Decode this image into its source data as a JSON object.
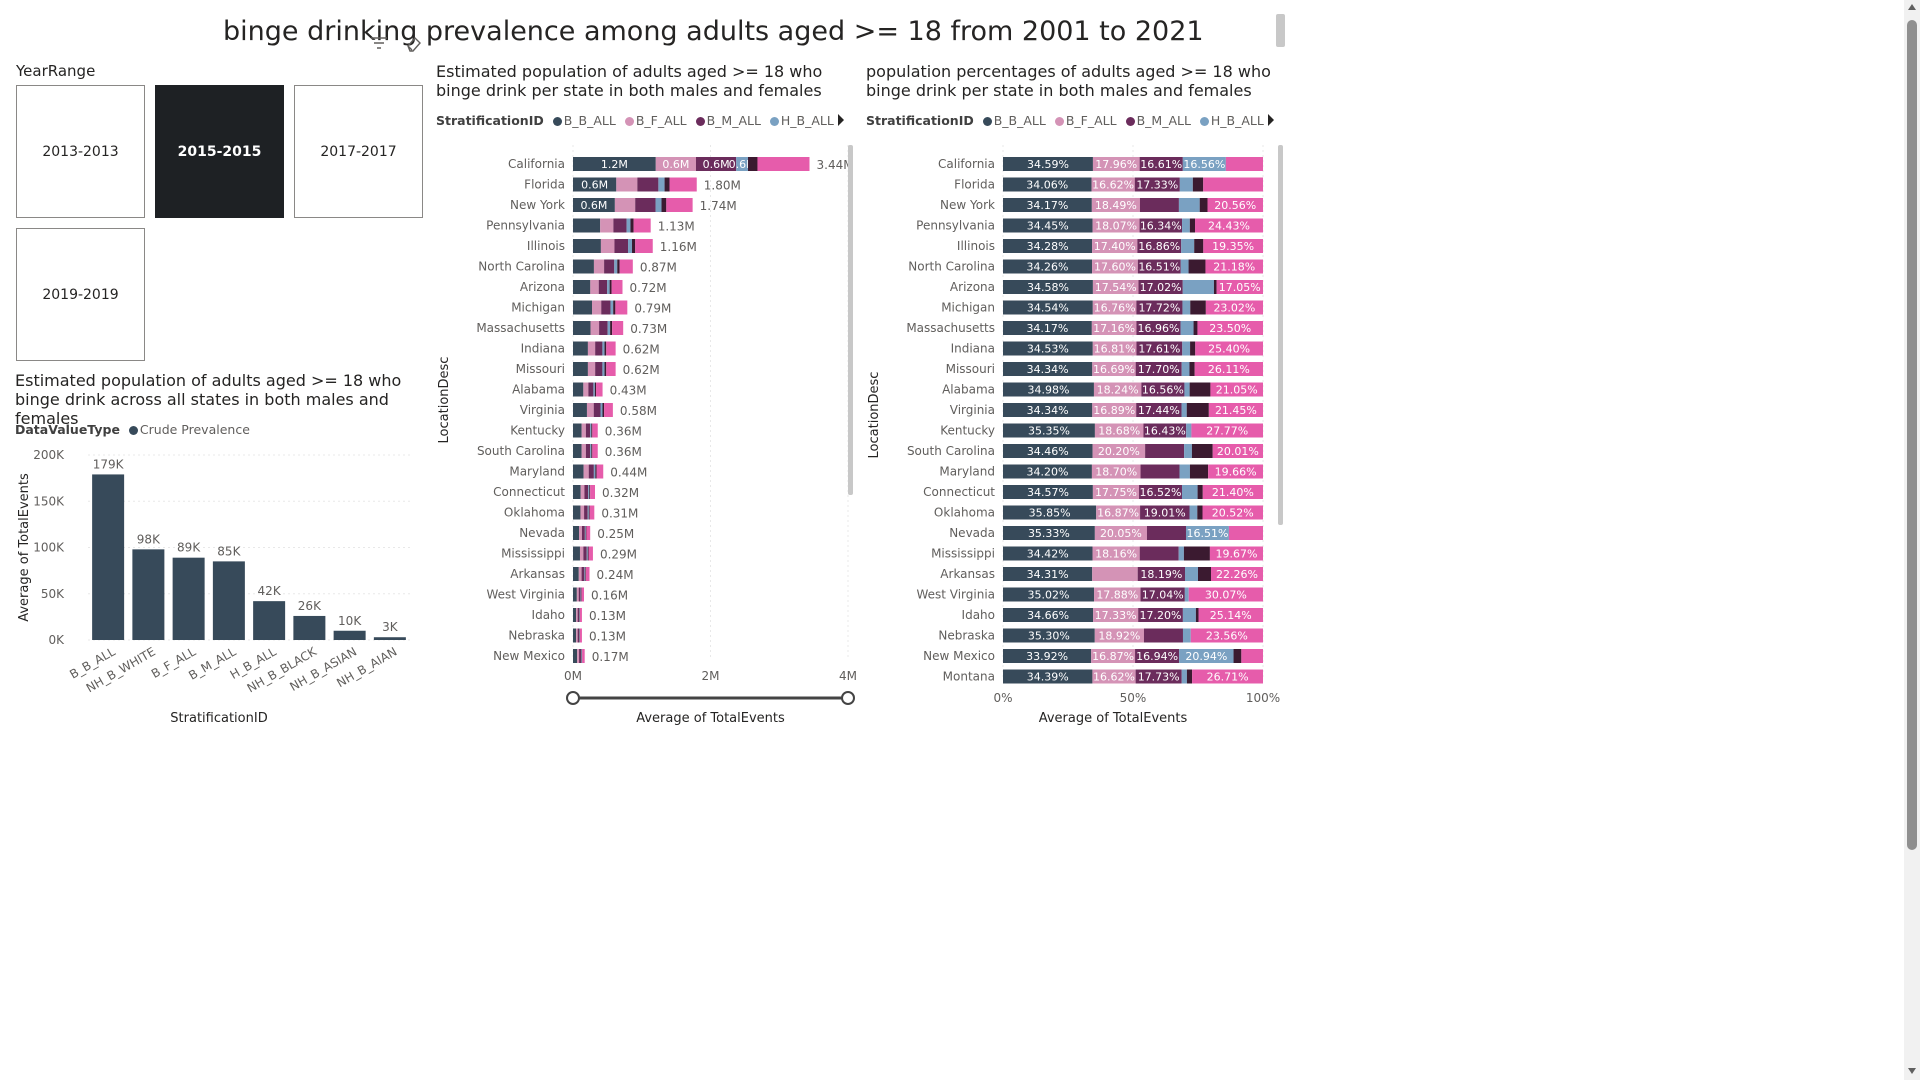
{
  "page": {
    "title": "binge drinking prevalence among adults aged >= 18 from 2001 to 2021"
  },
  "slicer": {
    "label": "YearRange",
    "tiles": [
      {
        "label": "2013-2013",
        "selected": false
      },
      {
        "label": "2015-2015",
        "selected": true
      },
      {
        "label": "2017-2017",
        "selected": false
      },
      {
        "label": "2019-2019",
        "selected": false
      }
    ]
  },
  "colors": {
    "B_B_ALL": "#374a5a",
    "B_F_ALL": "#d493b6",
    "B_M_ALL": "#6b2c5c",
    "H_B_ALL": "#7aa1c2",
    "dark": "#3b1a30",
    "pink": "#e65cab",
    "bar": "#374a5a"
  },
  "chart_data": [
    {
      "type": "bar",
      "title": "Estimated population of adults aged >= 18 who binge drink across all states in both males and females",
      "legend_title": "DataValueType",
      "legend": [
        "Crude Prevalence"
      ],
      "categories": [
        "B_B_ALL",
        "NH_B_WHITE",
        "B_F_ALL",
        "B_M_ALL",
        "H_B_ALL",
        "NH_B_BLACK",
        "NH_B_ASIAN",
        "NH_B_AIAN"
      ],
      "values": [
        179000,
        98000,
        89000,
        85000,
        42000,
        26000,
        10000,
        3000
      ],
      "data_labels": [
        "179K",
        "98K",
        "89K",
        "85K",
        "42K",
        "26K",
        "10K",
        "3K"
      ],
      "xlabel": "StratificationID",
      "ylabel": "Average of TotalEvents",
      "yticks": [
        "0K",
        "50K",
        "100K",
        "150K",
        "200K"
      ],
      "ylim": [
        0,
        200000
      ]
    },
    {
      "type": "bar",
      "orientation": "horizontal-stacked",
      "title": "Estimated population of adults aged >= 18 who binge drink per state in both males and females",
      "legend_title": "StratificationID",
      "legend": [
        "B_B_ALL",
        "B_F_ALL",
        "B_M_ALL",
        "H_B_ALL"
      ],
      "ylabel": "LocationDesc",
      "xlabel": "Average of TotalEvents",
      "xticks": [
        "0M",
        "2M",
        "4M"
      ],
      "xlim": [
        0,
        4000000
      ],
      "categories": [
        "California",
        "Florida",
        "New York",
        "Pennsylvania",
        "Illinois",
        "North Carolina",
        "Arizona",
        "Michigan",
        "Massachusetts",
        "Indiana",
        "Missouri",
        "Alabama",
        "Virginia",
        "Kentucky",
        "South Carolina",
        "Maryland",
        "Connecticut",
        "Oklahoma",
        "Nevada",
        "Mississippi",
        "Arkansas",
        "West Virginia",
        "Idaho",
        "Nebraska",
        "New Mexico"
      ],
      "totals": [
        3.44,
        1.8,
        1.74,
        1.13,
        1.16,
        0.87,
        0.72,
        0.79,
        0.73,
        0.62,
        0.62,
        0.43,
        0.58,
        0.36,
        0.36,
        0.44,
        0.32,
        0.31,
        0.25,
        0.29,
        0.24,
        0.16,
        0.13,
        0.13,
        0.17
      ],
      "total_labels": [
        "3.44M",
        "1.80M",
        "1.74M",
        "1.13M",
        "1.16M",
        "0.87M",
        "0.72M",
        "0.79M",
        "0.73M",
        "0.62M",
        "0.62M",
        "0.43M",
        "0.58M",
        "0.36M",
        "0.36M",
        "0.44M",
        "0.32M",
        "0.31M",
        "0.25M",
        "0.29M",
        "0.24M",
        "0.16M",
        "0.13M",
        "0.13M",
        "0.17M"
      ],
      "segment_labels": [
        [
          "1.2M",
          "0.6M",
          "0.6M",
          "0.6M"
        ],
        [
          "0.6M"
        ],
        [
          "0.6M"
        ]
      ]
    },
    {
      "type": "bar",
      "orientation": "horizontal-100-stacked",
      "title": "population percentages of adults aged >= 18 who binge drink per state in both males and females",
      "legend_title": "StratificationID",
      "legend": [
        "B_B_ALL",
        "B_F_ALL",
        "B_M_ALL",
        "H_B_ALL"
      ],
      "ylabel": "LocationDesc",
      "xlabel": "Average of TotalEvents",
      "xticks": [
        "0%",
        "50%",
        "100%"
      ],
      "xlim": [
        0,
        100
      ],
      "categories": [
        "California",
        "Florida",
        "New York",
        "Pennsylvania",
        "Illinois",
        "North Carolina",
        "Arizona",
        "Michigan",
        "Massachusetts",
        "Indiana",
        "Missouri",
        "Alabama",
        "Virginia",
        "Kentucky",
        "South Carolina",
        "Maryland",
        "Connecticut",
        "Oklahoma",
        "Nevada",
        "Mississippi",
        "Arkansas",
        "West Virginia",
        "Idaho",
        "Nebraska",
        "New Mexico",
        "Montana"
      ],
      "b_b_all": [
        34.59,
        34.06,
        34.17,
        34.45,
        34.28,
        34.26,
        34.58,
        34.54,
        34.17,
        34.53,
        34.34,
        34.98,
        34.34,
        35.35,
        34.46,
        34.2,
        34.57,
        35.85,
        35.33,
        34.42,
        34.31,
        35.02,
        34.66,
        35.3,
        33.92,
        34.39
      ],
      "b_f_all": [
        17.96,
        16.62,
        18.49,
        18.07,
        17.4,
        17.6,
        17.54,
        16.76,
        17.16,
        16.81,
        16.69,
        18.24,
        16.89,
        18.68,
        20.2,
        18.7,
        17.75,
        16.87,
        20.05,
        18.16,
        17.5,
        17.88,
        17.33,
        18.92,
        16.87,
        16.62
      ],
      "b_m_all": [
        16.61,
        17.33,
        15.0,
        16.34,
        16.86,
        16.51,
        17.02,
        17.72,
        16.96,
        17.61,
        17.7,
        16.56,
        17.44,
        16.43,
        15.0,
        15.0,
        16.52,
        19.01,
        15.0,
        15.0,
        18.19,
        17.04,
        17.2,
        15.0,
        16.94,
        17.73
      ],
      "h_b_all": [
        16.56,
        5.0,
        8.0,
        3.0,
        5.0,
        3.0,
        12.0,
        3.0,
        5.0,
        3.0,
        3.0,
        2.0,
        2.0,
        2.0,
        3.0,
        4.0,
        6.0,
        3.0,
        16.51,
        2.0,
        5.0,
        1.5,
        5.0,
        3.0,
        20.94,
        2.0
      ],
      "dark_segment": [
        0,
        4.0,
        3.0,
        2.0,
        3.5,
        6.5,
        1.0,
        6.0,
        1.5,
        2.0,
        2.0,
        8.0,
        8.5,
        0,
        8.0,
        7.0,
        2.0,
        2.0,
        0,
        10.0,
        5.0,
        0,
        1.0,
        0,
        3.0,
        2.0
      ],
      "pink_labels": [
        "",
        "",
        "20.56%",
        "24.43%",
        "19.35%",
        "21.18%",
        "17.05%",
        "23.02%",
        "23.50%",
        "25.40%",
        "26.11%",
        "21.05%",
        "21.45%",
        "27.77%",
        "20.01%",
        "19.66%",
        "21.40%",
        "20.52%",
        "",
        "19.67%",
        "22.26%",
        "30.07%",
        "25.14%",
        "23.56%",
        "",
        "26.71%"
      ],
      "seg_labels": {
        "b_b_all": [
          "34.59%",
          "34.06%",
          "34.17%",
          "34.45%",
          "34.28%",
          "34.26%",
          "34.58%",
          "34.54%",
          "34.17%",
          "34.53%",
          "34.34%",
          "34.98%",
          "34.34%",
          "35.35%",
          "34.46%",
          "34.20%",
          "34.57%",
          "35.85%",
          "35.33%",
          "34.42%",
          "34.31%",
          "35.02%",
          "34.66%",
          "35.30%",
          "33.92%",
          "34.39%"
        ],
        "b_f_all": [
          "17.96%",
          "16.62%",
          "18.49%",
          "18.07%",
          "17.40%",
          "17.60%",
          "17.54%",
          "16.76%",
          "17.16%",
          "16.81%",
          "16.69%",
          "18.24%",
          "16.89%",
          "18.68%",
          "20.20%",
          "18.70%",
          "17.75%",
          "16.87%",
          "20.05%",
          "18.16%",
          "",
          "17.88%",
          "17.33%",
          "18.92%",
          "16.87%",
          "16.62%"
        ],
        "b_m_all": [
          "16.61%",
          "17.33%",
          "",
          "16.34%",
          "16.86%",
          "16.51%",
          "17.02%",
          "17.72%",
          "16.96%",
          "17.61%",
          "17.70%",
          "16.56%",
          "17.44%",
          "16.43%",
          "",
          "",
          "16.52%",
          "19.01%",
          "",
          "",
          "18.19%",
          "17.04%",
          "17.20%",
          "",
          "16.94%",
          "17.73%"
        ],
        "h_b_all": [
          "16.56%",
          "",
          "",
          "",
          "",
          "",
          "",
          "",
          "",
          "",
          "",
          "",
          "",
          "",
          "",
          "",
          "",
          "",
          "16.51%",
          "",
          "",
          "",
          "",
          "",
          "20.94%",
          ""
        ]
      }
    }
  ]
}
